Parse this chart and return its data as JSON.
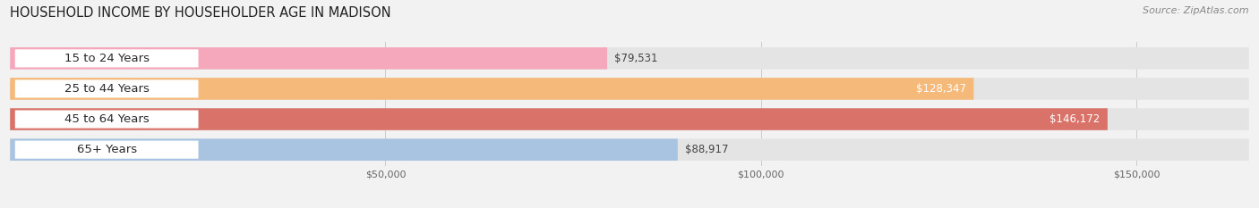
{
  "title": "HOUSEHOLD INCOME BY HOUSEHOLDER AGE IN MADISON",
  "source": "Source: ZipAtlas.com",
  "categories": [
    "15 to 24 Years",
    "25 to 44 Years",
    "45 to 64 Years",
    "65+ Years"
  ],
  "values": [
    79531,
    128347,
    146172,
    88917
  ],
  "bar_colors": [
    "#f5a8bb",
    "#f5b97a",
    "#d9736a",
    "#a8c4e0"
  ],
  "bg_color": "#f2f2f2",
  "bar_bg_color": "#e4e4e4",
  "xmax": 165000,
  "xtick_vals": [
    50000,
    100000,
    150000
  ],
  "xtick_labels": [
    "$50,000",
    "$100,000",
    "$150,000"
  ],
  "title_fontsize": 10.5,
  "source_fontsize": 8,
  "label_fontsize": 9.5,
  "value_fontsize": 8.5,
  "value_inside": [
    false,
    true,
    true,
    false
  ],
  "value_colors_inside": [
    "#555555",
    "#ffffff",
    "#ffffff",
    "#555555"
  ]
}
